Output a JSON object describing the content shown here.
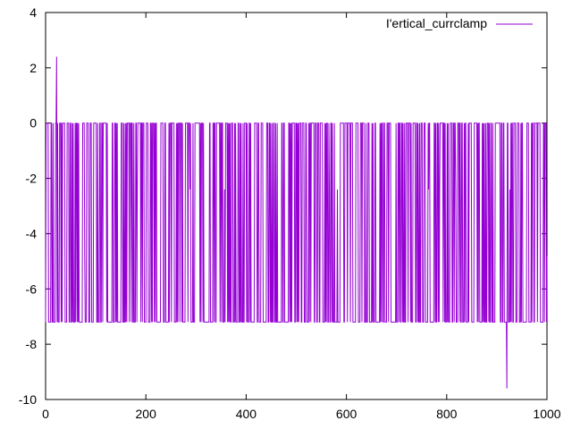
{
  "chart_data": {
    "type": "line",
    "title": "",
    "xlabel": "",
    "ylabel": "",
    "xlim": [
      0,
      1000
    ],
    "ylim": [
      -10,
      4
    ],
    "x_ticks": [
      0,
      200,
      400,
      600,
      800,
      1000
    ],
    "y_ticks": [
      -10,
      -8,
      -6,
      -4,
      -2,
      0,
      2,
      4
    ],
    "x_tick_labels": [
      "0",
      "200",
      "400",
      "600",
      "800",
      "1000"
    ],
    "y_tick_labels": [
      "-10",
      "-8",
      "-6",
      "-4",
      "-2",
      "0",
      "2",
      "4"
    ],
    "grid": false,
    "legend_position": "top-right",
    "series": [
      {
        "name": "I'ertical_currclamp",
        "color": "#9400d3",
        "signal": {
          "description_levels": {
            "high": 0,
            "low": -7.2,
            "mid": -2.4,
            "intermediate": -4.8
          },
          "spikes": [
            {
              "x": 22,
              "y": 2.4
            },
            {
              "x": 920,
              "y": -9.6
            }
          ],
          "intermediate_points": [
            {
              "x": 78,
              "y": -4.8
            },
            {
              "x": 183,
              "y": -2.4
            },
            {
              "x": 288,
              "y": -2.4
            },
            {
              "x": 357,
              "y": -2.4
            },
            {
              "x": 566,
              "y": -2.4
            },
            {
              "x": 582,
              "y": -2.4
            },
            {
              "x": 764,
              "y": -2.4
            },
            {
              "x": 786,
              "y": -2.4
            },
            {
              "x": 818,
              "y": -2.4
            },
            {
              "x": 926,
              "y": -2.4
            },
            {
              "x": 1000,
              "y": -4.8
            }
          ],
          "n_points": 1001
        }
      }
    ]
  }
}
